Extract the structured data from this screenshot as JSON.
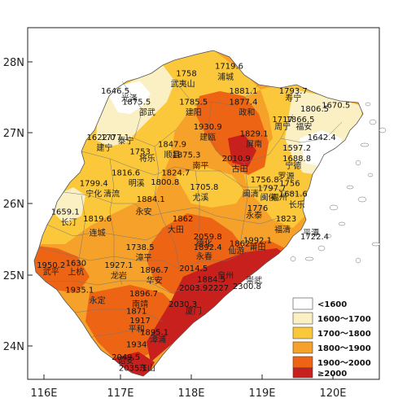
{
  "axes": {
    "x_ticks": [
      "116E",
      "117E",
      "118E",
      "119E",
      "120E"
    ],
    "y_ticks": [
      "28N",
      "27N",
      "26N",
      "25N",
      "24N"
    ]
  },
  "legend": {
    "items": [
      {
        "label": "<1600",
        "color": "#ffffff"
      },
      {
        "label": "1600～1700",
        "color": "#fbf0c4"
      },
      {
        "label": "1700～1800",
        "color": "#fbc83c"
      },
      {
        "label": "1800～1900",
        "color": "#f5a12a"
      },
      {
        "label": "1900～2000",
        "color": "#ec6414"
      },
      {
        "label": "≥2000",
        "color": "#c8201c"
      }
    ]
  },
  "stations": [
    {
      "value": "1719.6",
      "lon": 118.6,
      "lat": 27.9
    },
    {
      "value": "1758",
      "lon": 118.0,
      "lat": 27.8
    },
    {
      "value": "1646.5",
      "lon": 117.0,
      "lat": 27.55
    },
    {
      "value": "1875.5",
      "lon": 117.3,
      "lat": 27.4
    },
    {
      "value": "1785.5",
      "lon": 118.1,
      "lat": 27.4
    },
    {
      "value": "1881.1",
      "lon": 118.8,
      "lat": 27.55
    },
    {
      "value": "1877.4",
      "lon": 118.8,
      "lat": 27.4
    },
    {
      "value": "1793.7",
      "lon": 119.5,
      "lat": 27.55
    },
    {
      "value": "1806.5",
      "lon": 119.8,
      "lat": 27.3
    },
    {
      "value": "1670.5",
      "lon": 120.1,
      "lat": 27.35
    },
    {
      "value": "1930.9",
      "lon": 118.3,
      "lat": 27.05
    },
    {
      "value": "1829.1",
      "lon": 118.95,
      "lat": 26.95
    },
    {
      "value": "1717",
      "lon": 119.35,
      "lat": 27.15
    },
    {
      "value": "1866.5",
      "lon": 119.6,
      "lat": 27.15
    },
    {
      "value": "1642.4",
      "lon": 119.9,
      "lat": 26.9
    },
    {
      "value": "1622.0",
      "lon": 116.8,
      "lat": 26.9
    },
    {
      "value": "1777.1",
      "lon": 117.0,
      "lat": 26.9
    },
    {
      "value": "1847.9",
      "lon": 117.8,
      "lat": 26.8
    },
    {
      "value": "1753",
      "lon": 117.35,
      "lat": 26.7
    },
    {
      "value": "1875.3",
      "lon": 118.0,
      "lat": 26.65
    },
    {
      "value": "2010.9",
      "lon": 118.7,
      "lat": 26.6
    },
    {
      "value": "1597.2",
      "lon": 119.55,
      "lat": 26.75
    },
    {
      "value": "1688.8",
      "lon": 119.55,
      "lat": 26.6
    },
    {
      "value": "1816.6",
      "lon": 117.15,
      "lat": 26.4
    },
    {
      "value": "1824.7",
      "lon": 117.85,
      "lat": 26.4
    },
    {
      "value": "1800.8",
      "lon": 117.7,
      "lat": 26.27
    },
    {
      "value": "1756.8",
      "lon": 119.1,
      "lat": 26.3
    },
    {
      "value": "1756",
      "lon": 119.45,
      "lat": 26.25
    },
    {
      "value": "1799.4",
      "lon": 116.7,
      "lat": 26.25
    },
    {
      "value": "1705.8",
      "lon": 118.25,
      "lat": 26.2
    },
    {
      "value": "1797.7",
      "lon": 119.2,
      "lat": 26.18
    },
    {
      "value": "1681.6",
      "lon": 119.5,
      "lat": 26.1
    },
    {
      "value": "1884.1",
      "lon": 117.5,
      "lat": 26.03
    },
    {
      "value": "1659.1",
      "lon": 116.3,
      "lat": 25.85
    },
    {
      "value": "1776",
      "lon": 119.0,
      "lat": 25.9
    },
    {
      "value": "1819.6",
      "lon": 116.75,
      "lat": 25.75
    },
    {
      "value": "1862",
      "lon": 117.95,
      "lat": 25.75
    },
    {
      "value": "1823",
      "lon": 119.4,
      "lat": 25.75
    },
    {
      "value": "1722.4",
      "lon": 119.8,
      "lat": 25.5
    },
    {
      "value": "2059.8",
      "lon": 118.3,
      "lat": 25.5
    },
    {
      "value": "1892.4",
      "lon": 118.3,
      "lat": 25.35
    },
    {
      "value": "1862",
      "lon": 118.75,
      "lat": 25.4
    },
    {
      "value": "1992.1",
      "lon": 119.0,
      "lat": 25.45
    },
    {
      "value": "1738.5",
      "lon": 117.35,
      "lat": 25.35
    },
    {
      "value": "1950.2",
      "lon": 116.1,
      "lat": 25.1
    },
    {
      "value": "1630",
      "lon": 116.45,
      "lat": 25.13
    },
    {
      "value": "1927.1",
      "lon": 117.05,
      "lat": 25.1
    },
    {
      "value": "1896.7",
      "lon": 117.55,
      "lat": 25.03
    },
    {
      "value": "2014.5",
      "lon": 118.1,
      "lat": 25.05
    },
    {
      "value": "1884.5",
      "lon": 118.35,
      "lat": 24.9
    },
    {
      "value": "2003.9",
      "lon": 118.1,
      "lat": 24.78
    },
    {
      "value": "2227",
      "lon": 118.45,
      "lat": 24.78
    },
    {
      "value": "2300.8",
      "lon": 118.85,
      "lat": 24.8
    },
    {
      "value": "1935.1",
      "lon": 116.5,
      "lat": 24.75
    },
    {
      "value": "1896.7",
      "lon": 117.4,
      "lat": 24.7
    },
    {
      "value": "2030.3",
      "lon": 117.95,
      "lat": 24.55
    },
    {
      "value": "1871",
      "lon": 117.3,
      "lat": 24.45
    },
    {
      "value": "1917",
      "lon": 117.35,
      "lat": 24.32
    },
    {
      "value": "1895.1",
      "lon": 117.55,
      "lat": 24.15
    },
    {
      "value": "1934",
      "lon": 117.3,
      "lat": 23.98
    },
    {
      "value": "2049.5",
      "lon": 117.15,
      "lat": 23.8
    },
    {
      "value": "2035.1",
      "lon": 117.25,
      "lat": 23.65
    }
  ],
  "cities": [
    {
      "name": "浦城",
      "lon": 118.55,
      "lat": 27.75
    },
    {
      "name": "武夷山",
      "lon": 117.95,
      "lat": 27.65
    },
    {
      "name": "光泽",
      "lon": 117.2,
      "lat": 27.45
    },
    {
      "name": "邵武",
      "lon": 117.45,
      "lat": 27.25
    },
    {
      "name": "建阳",
      "lon": 118.1,
      "lat": 27.25
    },
    {
      "name": "政和",
      "lon": 118.85,
      "lat": 27.25
    },
    {
      "name": "寿宁",
      "lon": 119.5,
      "lat": 27.45
    },
    {
      "name": "周宁",
      "lon": 119.35,
      "lat": 27.05
    },
    {
      "name": "福安",
      "lon": 119.65,
      "lat": 27.05
    },
    {
      "name": "建瓯",
      "lon": 118.3,
      "lat": 26.9
    },
    {
      "name": "屏南",
      "lon": 118.95,
      "lat": 26.8
    },
    {
      "name": "建宁",
      "lon": 116.85,
      "lat": 26.75
    },
    {
      "name": "泰宁",
      "lon": 117.15,
      "lat": 26.85
    },
    {
      "name": "顺昌",
      "lon": 117.8,
      "lat": 26.65
    },
    {
      "name": "将乐",
      "lon": 117.45,
      "lat": 26.6
    },
    {
      "name": "南平",
      "lon": 118.2,
      "lat": 26.5
    },
    {
      "name": "古田",
      "lon": 118.75,
      "lat": 26.45
    },
    {
      "name": "宁德",
      "lon": 119.5,
      "lat": 26.5
    },
    {
      "name": "罗源",
      "lon": 119.4,
      "lat": 26.35
    },
    {
      "name": "宁化",
      "lon": 116.7,
      "lat": 26.1
    },
    {
      "name": "清流",
      "lon": 116.95,
      "lat": 26.1
    },
    {
      "name": "明溪",
      "lon": 117.3,
      "lat": 26.25
    },
    {
      "name": "尤溪",
      "lon": 118.2,
      "lat": 26.05
    },
    {
      "name": "闽清",
      "lon": 118.9,
      "lat": 26.1
    },
    {
      "name": "闽侯",
      "lon": 119.15,
      "lat": 26.05
    },
    {
      "name": "福州",
      "lon": 119.3,
      "lat": 26.05
    },
    {
      "name": "长乐",
      "lon": 119.55,
      "lat": 25.95
    },
    {
      "name": "永安",
      "lon": 117.4,
      "lat": 25.85
    },
    {
      "name": "长汀",
      "lon": 116.35,
      "lat": 25.7
    },
    {
      "name": "连城",
      "lon": 116.75,
      "lat": 25.55
    },
    {
      "name": "大田",
      "lon": 117.85,
      "lat": 25.6
    },
    {
      "name": "永泰",
      "lon": 118.95,
      "lat": 25.8
    },
    {
      "name": "福清",
      "lon": 119.35,
      "lat": 25.6
    },
    {
      "name": "平潭",
      "lon": 119.75,
      "lat": 25.55
    },
    {
      "name": "德化",
      "lon": 118.25,
      "lat": 25.4
    },
    {
      "name": "仙游",
      "lon": 118.7,
      "lat": 25.3
    },
    {
      "name": "莆田",
      "lon": 119.0,
      "lat": 25.35
    },
    {
      "name": "漳平",
      "lon": 117.4,
      "lat": 25.2
    },
    {
      "name": "上杭",
      "lon": 116.45,
      "lat": 25.0
    },
    {
      "name": "武平",
      "lon": 116.1,
      "lat": 25.0
    },
    {
      "name": "龙岩",
      "lon": 117.05,
      "lat": 24.95
    },
    {
      "name": "华安",
      "lon": 117.55,
      "lat": 24.88
    },
    {
      "name": "永春",
      "lon": 118.25,
      "lat": 25.22
    },
    {
      "name": "泉州",
      "lon": 118.55,
      "lat": 24.95
    },
    {
      "name": "崇武",
      "lon": 118.95,
      "lat": 24.88
    },
    {
      "name": "永定",
      "lon": 116.75,
      "lat": 24.6
    },
    {
      "name": "南靖",
      "lon": 117.35,
      "lat": 24.55
    },
    {
      "name": "厦门",
      "lon": 118.1,
      "lat": 24.45
    },
    {
      "name": "平和",
      "lon": 117.3,
      "lat": 24.2
    },
    {
      "name": "漳浦",
      "lon": 117.6,
      "lat": 24.05
    },
    {
      "name": "诏安",
      "lon": 117.15,
      "lat": 23.75
    },
    {
      "name": "东山",
      "lon": 117.45,
      "lat": 23.65
    }
  ]
}
